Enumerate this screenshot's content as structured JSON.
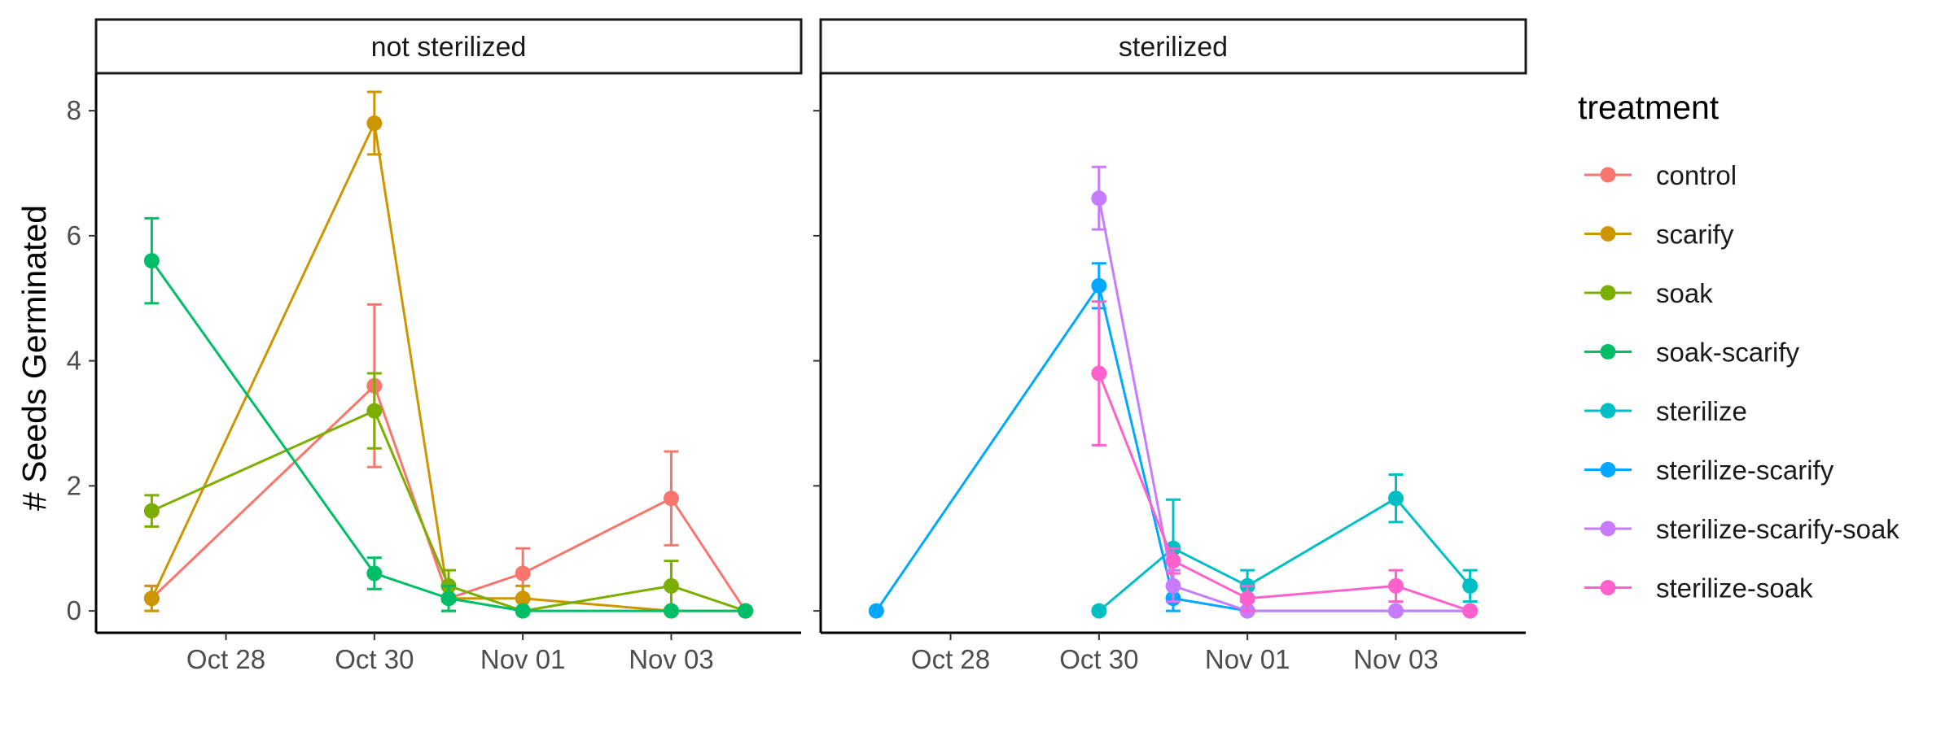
{
  "chart_data": {
    "type": "line",
    "ylabel": "# Seeds Germinated",
    "xlabel": "",
    "ylim": [
      -0.35,
      8.6
    ],
    "xlim": [
      "2024-10-26 06:00",
      "2024-11-04 18:00"
    ],
    "y_ticks": [
      0,
      2,
      4,
      6,
      8
    ],
    "x_ticks": [
      {
        "date": "2024-10-28",
        "label": "Oct 28"
      },
      {
        "date": "2024-10-30",
        "label": "Oct 30"
      },
      {
        "date": "2024-11-01",
        "label": "Nov 01"
      },
      {
        "date": "2024-11-03",
        "label": "Nov 03"
      }
    ],
    "grid": false,
    "legend": {
      "title": "treatment",
      "placement": "right",
      "entries": [
        {
          "name": "control",
          "color": "#F8766D"
        },
        {
          "name": "scarify",
          "color": "#CD9600"
        },
        {
          "name": "soak",
          "color": "#7CAE00"
        },
        {
          "name": "soak-scarify",
          "color": "#00BE67"
        },
        {
          "name": "sterilize",
          "color": "#00BFC4"
        },
        {
          "name": "sterilize-scarify",
          "color": "#00A9FF"
        },
        {
          "name": "sterilize-scarify-soak",
          "color": "#C77CFF"
        },
        {
          "name": "sterilize-soak",
          "color": "#FF61CC"
        }
      ]
    },
    "panels": [
      {
        "label": "not sterilized",
        "series": [
          {
            "name": "control",
            "color": "#F8766D",
            "points": [
              {
                "x": "2024-10-27",
                "y": 0.2,
                "lo": 0.0,
                "hi": 0.4
              },
              {
                "x": "2024-10-30",
                "y": 3.6,
                "lo": 2.3,
                "hi": 4.9
              },
              {
                "x": "2024-10-31",
                "y": 0.2,
                "lo": 0.0,
                "hi": 0.4
              },
              {
                "x": "2024-11-01",
                "y": 0.6,
                "lo": 0.2,
                "hi": 1.0
              },
              {
                "x": "2024-11-03",
                "y": 1.8,
                "lo": 1.05,
                "hi": 2.55
              },
              {
                "x": "2024-11-04",
                "y": 0.0,
                "lo": 0.0,
                "hi": 0.0
              }
            ]
          },
          {
            "name": "scarify",
            "color": "#CD9600",
            "points": [
              {
                "x": "2024-10-27",
                "y": 0.2,
                "lo": 0.0,
                "hi": 0.4
              },
              {
                "x": "2024-10-30",
                "y": 7.8,
                "lo": 7.3,
                "hi": 8.3
              },
              {
                "x": "2024-10-31",
                "y": 0.2,
                "lo": 0.0,
                "hi": 0.4
              },
              {
                "x": "2024-11-01",
                "y": 0.2,
                "lo": 0.0,
                "hi": 0.4
              },
              {
                "x": "2024-11-03",
                "y": 0.0,
                "lo": 0.0,
                "hi": 0.0
              },
              {
                "x": "2024-11-04",
                "y": 0.0,
                "lo": 0.0,
                "hi": 0.0
              }
            ]
          },
          {
            "name": "soak",
            "color": "#7CAE00",
            "points": [
              {
                "x": "2024-10-27",
                "y": 1.6,
                "lo": 1.35,
                "hi": 1.85
              },
              {
                "x": "2024-10-30",
                "y": 3.2,
                "lo": 2.6,
                "hi": 3.8
              },
              {
                "x": "2024-10-31",
                "y": 0.4,
                "lo": 0.15,
                "hi": 0.65
              },
              {
                "x": "2024-11-01",
                "y": 0.0,
                "lo": 0.0,
                "hi": 0.0
              },
              {
                "x": "2024-11-03",
                "y": 0.4,
                "lo": 0.0,
                "hi": 0.8
              },
              {
                "x": "2024-11-04",
                "y": 0.0,
                "lo": 0.0,
                "hi": 0.0
              }
            ]
          },
          {
            "name": "soak-scarify",
            "color": "#00BE67",
            "points": [
              {
                "x": "2024-10-27",
                "y": 5.6,
                "lo": 4.92,
                "hi": 6.28
              },
              {
                "x": "2024-10-30",
                "y": 0.6,
                "lo": 0.35,
                "hi": 0.85
              },
              {
                "x": "2024-10-31",
                "y": 0.2,
                "lo": 0.0,
                "hi": 0.4
              },
              {
                "x": "2024-11-01",
                "y": 0.0,
                "lo": 0.0,
                "hi": 0.0
              },
              {
                "x": "2024-11-03",
                "y": 0.0,
                "lo": 0.0,
                "hi": 0.0
              },
              {
                "x": "2024-11-04",
                "y": 0.0,
                "lo": 0.0,
                "hi": 0.0
              }
            ]
          }
        ]
      },
      {
        "label": "sterilized",
        "series": [
          {
            "name": "sterilize",
            "color": "#00BFC4",
            "points": [
              {
                "x": "2024-10-30",
                "y": 0.0,
                "lo": 0.0,
                "hi": 0.0
              },
              {
                "x": "2024-10-31",
                "y": 1.0,
                "lo": 0.22,
                "hi": 1.78
              },
              {
                "x": "2024-11-01",
                "y": 0.4,
                "lo": 0.15,
                "hi": 0.65
              },
              {
                "x": "2024-11-03",
                "y": 1.8,
                "lo": 1.42,
                "hi": 2.18
              },
              {
                "x": "2024-11-04",
                "y": 0.4,
                "lo": 0.15,
                "hi": 0.65
              }
            ]
          },
          {
            "name": "sterilize-scarify",
            "color": "#00A9FF",
            "points": [
              {
                "x": "2024-10-27",
                "y": 0.0,
                "lo": 0.0,
                "hi": 0.0
              },
              {
                "x": "2024-10-30",
                "y": 5.2,
                "lo": 4.84,
                "hi": 5.56
              },
              {
                "x": "2024-10-31",
                "y": 0.2,
                "lo": 0.0,
                "hi": 0.4
              },
              {
                "x": "2024-11-01",
                "y": 0.0,
                "lo": 0.0,
                "hi": 0.0
              },
              {
                "x": "2024-11-03",
                "y": 0.0,
                "lo": 0.0,
                "hi": 0.0
              },
              {
                "x": "2024-11-04",
                "y": 0.0,
                "lo": 0.0,
                "hi": 0.0
              }
            ]
          },
          {
            "name": "sterilize-scarify-soak",
            "color": "#C77CFF",
            "points": [
              {
                "x": "2024-10-30",
                "y": 6.6,
                "lo": 6.1,
                "hi": 7.1
              },
              {
                "x": "2024-10-31",
                "y": 0.4,
                "lo": 0.15,
                "hi": 0.65
              },
              {
                "x": "2024-11-01",
                "y": 0.0,
                "lo": 0.0,
                "hi": 0.0
              },
              {
                "x": "2024-11-03",
                "y": 0.0,
                "lo": 0.0,
                "hi": 0.0
              },
              {
                "x": "2024-11-04",
                "y": 0.0,
                "lo": 0.0,
                "hi": 0.0
              }
            ]
          },
          {
            "name": "sterilize-soak",
            "color": "#FF61CC",
            "points": [
              {
                "x": "2024-10-30",
                "y": 3.8,
                "lo": 2.65,
                "hi": 4.95
              },
              {
                "x": "2024-10-31",
                "y": 0.8,
                "lo": 0.6,
                "hi": 1.0
              },
              {
                "x": "2024-11-01",
                "y": 0.2,
                "lo": 0.0,
                "hi": 0.4
              },
              {
                "x": "2024-11-03",
                "y": 0.4,
                "lo": 0.15,
                "hi": 0.65
              },
              {
                "x": "2024-11-04",
                "y": 0.0,
                "lo": 0.0,
                "hi": 0.0
              }
            ]
          }
        ]
      }
    ]
  }
}
